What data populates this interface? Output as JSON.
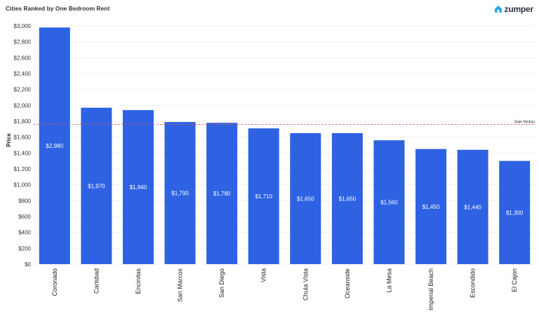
{
  "header": {
    "title": "Cities Ranked by One Bedroom Rent",
    "logo_text": "zumper"
  },
  "colors": {
    "bar": "#2e62e3",
    "median_line": "#e05252",
    "grid": "#e6e6e6",
    "logo_icon": "#2aa6f0"
  },
  "chart_data": {
    "type": "bar",
    "title": "Cities Ranked by One Bedroom Rent",
    "xlabel": "",
    "ylabel": "Price",
    "ylim": [
      0,
      3000
    ],
    "yticks": [
      0,
      200,
      400,
      600,
      800,
      1000,
      1200,
      1400,
      1600,
      1800,
      2000,
      2200,
      2400,
      2600,
      2800,
      3000
    ],
    "categories": [
      "Coronado",
      "Carlsbad",
      "Encinitas",
      "San Marcos",
      "San Diego",
      "Vista",
      "Chula Vista",
      "Oceanside",
      "La Mesa",
      "Imperial Beach",
      "Escondido",
      "El Cajon"
    ],
    "values": [
      2980,
      1970,
      1940,
      1790,
      1780,
      1710,
      1650,
      1650,
      1560,
      1450,
      1440,
      1300
    ],
    "reference_line": {
      "label": "State Median",
      "value": 1760
    },
    "grid": true,
    "legend": "none"
  }
}
